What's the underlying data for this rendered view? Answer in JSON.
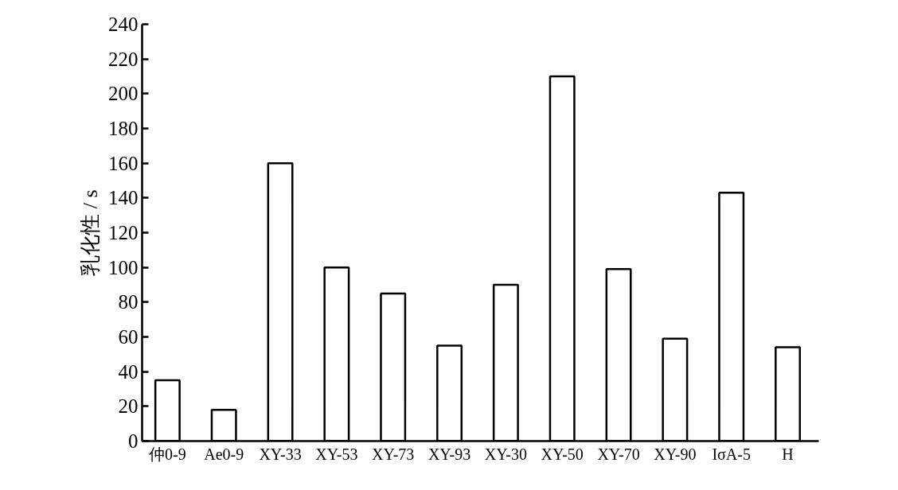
{
  "chart_data": {
    "type": "bar",
    "ylabel": "乳化性 / s",
    "categories": [
      "仲0-9",
      "Ae0-9",
      "XY-33",
      "XY-53",
      "XY-73",
      "XY-93",
      "XY-30",
      "XY-50",
      "XY-70",
      "XY-90",
      "IσA-5",
      "H"
    ],
    "values": [
      35,
      18,
      160,
      100,
      85,
      55,
      90,
      210,
      99,
      59,
      143,
      54
    ],
    "color": "#ffffff",
    "ylim": [
      0,
      240
    ],
    "yticks": [
      0,
      20,
      40,
      60,
      80,
      100,
      120,
      140,
      160,
      180,
      200,
      220,
      240
    ],
    "grid": false
  }
}
